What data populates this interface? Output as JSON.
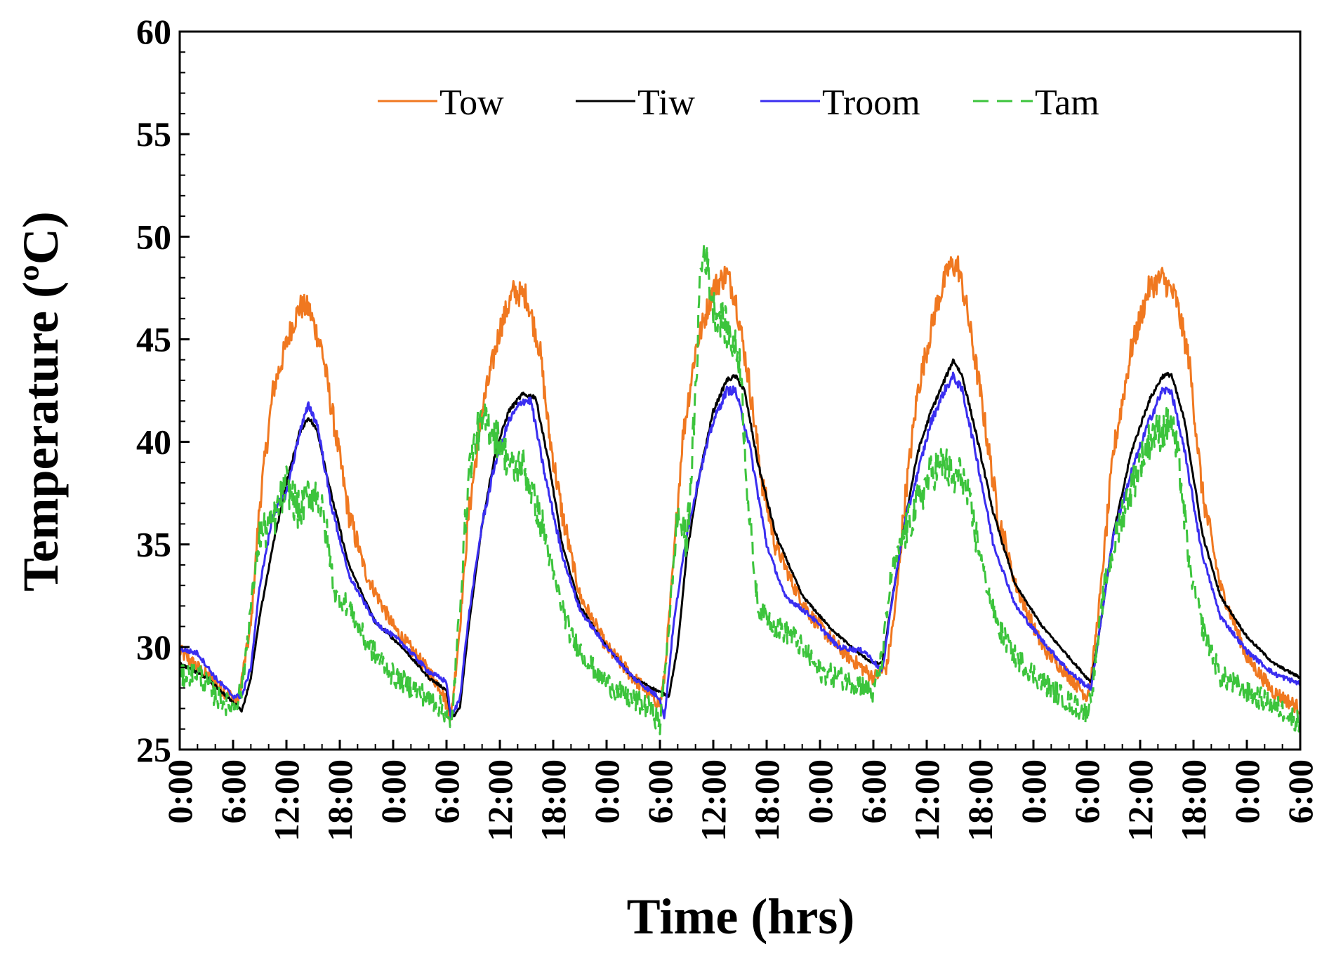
{
  "chart_data": {
    "type": "line",
    "title": "",
    "xlabel": "Time (hrs)",
    "ylabel": "Temperature (ºC)",
    "ylim": [
      25,
      60
    ],
    "yticks": [
      25,
      30,
      35,
      40,
      45,
      50,
      55,
      60
    ],
    "x_range_hours": [
      0,
      126
    ],
    "x_tick_labels": [
      "0:00",
      "6:00",
      "12:00",
      "18:00",
      "0:00",
      "6:00",
      "12:00",
      "18:00",
      "0:00",
      "6:00",
      "12:00",
      "18:00",
      "0:00",
      "6:00",
      "12:00",
      "18:00",
      "0:00",
      "6:00",
      "12:00",
      "18:00",
      "0:00",
      "6:00"
    ],
    "legend_position": "top-center",
    "series": [
      {
        "name": "Tow",
        "color": "#f07820",
        "dash": "solid",
        "points": [
          [
            0,
            29.8
          ],
          [
            3,
            28.6
          ],
          [
            6.5,
            27.3
          ],
          [
            8,
            31
          ],
          [
            9,
            37
          ],
          [
            10.5,
            42.5
          ],
          [
            12.5,
            45.5
          ],
          [
            13.5,
            46.6
          ],
          [
            14.5,
            46.5
          ],
          [
            16,
            44.5
          ],
          [
            17.5,
            40.5
          ],
          [
            19,
            36.5
          ],
          [
            21,
            33.5
          ],
          [
            24,
            31
          ],
          [
            28,
            28.8
          ],
          [
            29.5,
            27.9
          ],
          [
            30.5,
            26.5
          ],
          [
            31.5,
            31
          ],
          [
            32.5,
            36.5
          ],
          [
            34,
            41.5
          ],
          [
            36,
            45.5
          ],
          [
            37.5,
            47.3
          ],
          [
            39,
            47.1
          ],
          [
            40.5,
            44.5
          ],
          [
            41.5,
            40.5
          ],
          [
            43,
            36.5
          ],
          [
            45,
            32.5
          ],
          [
            48,
            30
          ],
          [
            51,
            28.5
          ],
          [
            54,
            27.2
          ],
          [
            54.5,
            28.5
          ],
          [
            55.5,
            34
          ],
          [
            56.5,
            40
          ],
          [
            58,
            44.5
          ],
          [
            60,
            47.5
          ],
          [
            61.5,
            48.2
          ],
          [
            62.5,
            47
          ],
          [
            64,
            43
          ],
          [
            65.5,
            38
          ],
          [
            67,
            35
          ],
          [
            69,
            33
          ],
          [
            71,
            31.5
          ],
          [
            74,
            30
          ],
          [
            78,
            28.5
          ],
          [
            79.5,
            29
          ],
          [
            80.5,
            32
          ],
          [
            81.5,
            37
          ],
          [
            83,
            42.5
          ],
          [
            85,
            46.5
          ],
          [
            86.5,
            48.5
          ],
          [
            87.5,
            48.6
          ],
          [
            88.5,
            46.5
          ],
          [
            90,
            42.5
          ],
          [
            92,
            36.5
          ],
          [
            94,
            33
          ],
          [
            97,
            30
          ],
          [
            100,
            28.6
          ],
          [
            102,
            27.6
          ],
          [
            102.5,
            28.5
          ],
          [
            103.5,
            32.5
          ],
          [
            105,
            39.5
          ],
          [
            107,
            44.5
          ],
          [
            109,
            47.5
          ],
          [
            110.5,
            48
          ],
          [
            112,
            47
          ],
          [
            113.5,
            44
          ],
          [
            115,
            37.5
          ],
          [
            117,
            33
          ],
          [
            120,
            29.5
          ],
          [
            123,
            27.8
          ],
          [
            126,
            27
          ]
        ]
      },
      {
        "name": "Tiw",
        "color": "#000000",
        "dash": "solid",
        "points": [
          [
            0,
            29.2
          ],
          [
            3,
            28.5
          ],
          [
            6,
            27.3
          ],
          [
            7,
            26.9
          ],
          [
            8,
            28.5
          ],
          [
            9,
            31.5
          ],
          [
            10.5,
            35
          ],
          [
            12,
            38
          ],
          [
            13.5,
            40.5
          ],
          [
            14.5,
            41.2
          ],
          [
            15.5,
            40.5
          ],
          [
            17,
            37.5
          ],
          [
            19,
            34
          ],
          [
            22,
            31.2
          ],
          [
            25,
            30
          ],
          [
            28,
            28.5
          ],
          [
            30,
            27.9
          ],
          [
            30.5,
            26.5
          ],
          [
            31.5,
            27
          ],
          [
            32.5,
            31
          ],
          [
            34,
            36
          ],
          [
            35.5,
            39.5
          ],
          [
            37,
            41.5
          ],
          [
            38.5,
            42.3
          ],
          [
            40,
            42.2
          ],
          [
            41.5,
            39
          ],
          [
            43,
            35
          ],
          [
            45,
            32
          ],
          [
            48,
            30
          ],
          [
            51,
            28.5
          ],
          [
            54,
            27.8
          ],
          [
            55,
            27.6
          ],
          [
            56,
            30
          ],
          [
            57,
            34.5
          ],
          [
            58.5,
            38.5
          ],
          [
            60,
            41.5
          ],
          [
            61.5,
            43
          ],
          [
            62.5,
            43.2
          ],
          [
            63.5,
            42.5
          ],
          [
            65,
            39
          ],
          [
            67,
            35.5
          ],
          [
            70,
            32.5
          ],
          [
            73,
            31
          ],
          [
            76,
            29.8
          ],
          [
            78,
            29.2
          ],
          [
            79,
            29.2
          ],
          [
            80,
            32
          ],
          [
            81.5,
            36
          ],
          [
            83,
            39.5
          ],
          [
            84.5,
            41.5
          ],
          [
            86,
            43
          ],
          [
            87,
            44
          ],
          [
            88,
            43.2
          ],
          [
            89.5,
            40.5
          ],
          [
            91.5,
            36.5
          ],
          [
            94,
            33
          ],
          [
            97,
            31
          ],
          [
            100,
            29.5
          ],
          [
            102,
            28.5
          ],
          [
            102.5,
            28.3
          ],
          [
            103.5,
            31
          ],
          [
            105,
            35.5
          ],
          [
            107,
            39.5
          ],
          [
            109,
            42
          ],
          [
            110.5,
            43.2
          ],
          [
            111.5,
            43.3
          ],
          [
            113,
            41
          ],
          [
            115,
            35.5
          ],
          [
            117,
            32.5
          ],
          [
            120,
            30.5
          ],
          [
            123,
            29.2
          ],
          [
            126,
            28.5
          ]
        ]
      },
      {
        "name": "Troom",
        "color": "#3a2ef0",
        "dash": "solid",
        "points": [
          [
            0,
            29.9
          ],
          [
            2,
            29.7
          ],
          [
            4,
            28.5
          ],
          [
            6,
            27.6
          ],
          [
            7,
            27.6
          ],
          [
            8,
            29
          ],
          [
            9,
            33
          ],
          [
            10.5,
            36.5
          ],
          [
            12,
            37.5
          ],
          [
            13.5,
            40.5
          ],
          [
            14.5,
            41.8
          ],
          [
            15.5,
            40.8
          ],
          [
            17,
            37
          ],
          [
            19,
            33.5
          ],
          [
            22,
            31.2
          ],
          [
            25,
            30.2
          ],
          [
            28,
            28.8
          ],
          [
            30,
            28.3
          ],
          [
            30.5,
            26.5
          ],
          [
            31.5,
            27.5
          ],
          [
            32.5,
            31.5
          ],
          [
            34,
            36
          ],
          [
            35.5,
            39
          ],
          [
            37,
            41
          ],
          [
            38.5,
            42
          ],
          [
            39.5,
            42
          ],
          [
            41,
            38.5
          ],
          [
            43,
            34.5
          ],
          [
            45,
            31.8
          ],
          [
            48,
            30
          ],
          [
            51,
            28.5
          ],
          [
            54,
            27.5
          ],
          [
            54.5,
            26.5
          ],
          [
            55.5,
            31
          ],
          [
            57,
            35.5
          ],
          [
            58.5,
            38.5
          ],
          [
            60,
            41
          ],
          [
            61.5,
            42.5
          ],
          [
            62.5,
            42.5
          ],
          [
            64,
            40
          ],
          [
            66,
            35
          ],
          [
            68,
            32.5
          ],
          [
            71,
            31.5
          ],
          [
            74,
            30
          ],
          [
            77,
            29.8
          ],
          [
            79,
            28.8
          ],
          [
            80,
            32
          ],
          [
            81.5,
            36
          ],
          [
            83,
            38.5
          ],
          [
            84.5,
            41
          ],
          [
            86,
            42.5
          ],
          [
            87,
            43.2
          ],
          [
            88,
            42.5
          ],
          [
            89.5,
            39.5
          ],
          [
            91.5,
            35
          ],
          [
            94,
            32
          ],
          [
            97,
            30.3
          ],
          [
            100,
            28.8
          ],
          [
            102,
            28.1
          ],
          [
            102.5,
            28
          ],
          [
            103.5,
            31
          ],
          [
            105,
            35.5
          ],
          [
            107,
            38.5
          ],
          [
            109,
            41
          ],
          [
            110.5,
            42.5
          ],
          [
            111.5,
            42.5
          ],
          [
            113,
            39.5
          ],
          [
            115,
            34.5
          ],
          [
            117,
            31.5
          ],
          [
            120,
            29.8
          ],
          [
            123,
            28.7
          ],
          [
            126,
            28.2
          ]
        ]
      },
      {
        "name": "Tam",
        "color": "#3cc43c",
        "dash": "dashed",
        "points": [
          [
            0,
            28.5
          ],
          [
            2,
            28.8
          ],
          [
            4,
            27.6
          ],
          [
            6,
            27
          ],
          [
            7,
            28
          ],
          [
            8,
            32
          ],
          [
            9,
            35.5
          ],
          [
            10.5,
            36
          ],
          [
            12,
            38
          ],
          [
            13.5,
            36.5
          ],
          [
            14.5,
            37.5
          ],
          [
            15.5,
            37.5
          ],
          [
            16.5,
            35.5
          ],
          [
            17.5,
            32.5
          ],
          [
            19,
            32
          ],
          [
            21,
            30.2
          ],
          [
            24,
            28.6
          ],
          [
            27,
            27.8
          ],
          [
            29,
            27.2
          ],
          [
            30,
            26.8
          ],
          [
            30.5,
            25.8
          ],
          [
            31.5,
            32
          ],
          [
            32.5,
            38.5
          ],
          [
            33.5,
            40.5
          ],
          [
            34.5,
            41
          ],
          [
            36,
            40
          ],
          [
            37.5,
            38.5
          ],
          [
            38.5,
            39
          ],
          [
            40,
            37
          ],
          [
            41,
            35.5
          ],
          [
            42,
            33.5
          ],
          [
            44,
            30.5
          ],
          [
            47,
            28.6
          ],
          [
            50,
            27.6
          ],
          [
            53,
            27
          ],
          [
            54,
            26.2
          ],
          [
            55,
            31
          ],
          [
            56,
            36.5
          ],
          [
            57,
            35
          ],
          [
            58,
            42
          ],
          [
            58.5,
            48
          ],
          [
            59,
            49.5
          ],
          [
            60,
            46.5
          ],
          [
            61,
            46
          ],
          [
            62,
            45
          ],
          [
            63,
            44
          ],
          [
            64,
            36.5
          ],
          [
            65,
            32
          ],
          [
            67,
            31
          ],
          [
            69,
            30.5
          ],
          [
            72,
            28.8
          ],
          [
            75,
            28.4
          ],
          [
            77,
            28.1
          ],
          [
            78,
            27.7
          ],
          [
            79,
            29.5
          ],
          [
            80,
            33.5
          ],
          [
            81.5,
            35.5
          ],
          [
            83,
            37
          ],
          [
            84.5,
            38.5
          ],
          [
            86,
            39
          ],
          [
            87,
            38
          ],
          [
            88,
            38.5
          ],
          [
            89,
            36.5
          ],
          [
            90.5,
            33.5
          ],
          [
            92,
            31
          ],
          [
            94,
            29.5
          ],
          [
            97,
            28.3
          ],
          [
            100,
            27.3
          ],
          [
            102,
            26.8
          ],
          [
            102.5,
            27.6
          ],
          [
            104,
            33
          ],
          [
            106,
            36.5
          ],
          [
            108,
            39
          ],
          [
            109.5,
            40.5
          ],
          [
            110.5,
            40.5
          ],
          [
            111.5,
            41
          ],
          [
            112.5,
            38.5
          ],
          [
            113.5,
            34
          ],
          [
            115,
            31
          ],
          [
            117,
            28.6
          ],
          [
            120,
            27.8
          ],
          [
            123,
            27.2
          ],
          [
            126,
            26.3
          ]
        ]
      }
    ]
  }
}
